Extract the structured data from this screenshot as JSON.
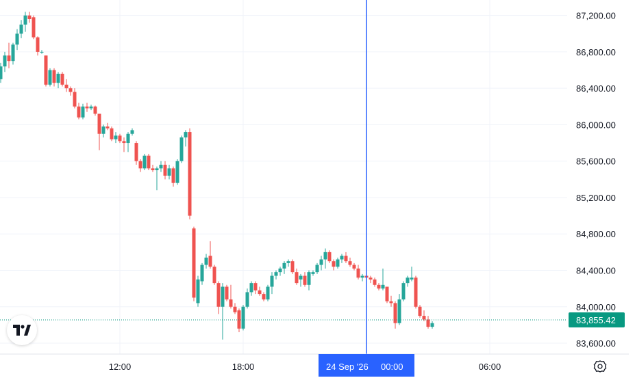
{
  "chart_data": {
    "type": "candlestick",
    "y_axis_ticks": [
      "87,200.00",
      "86,800.00",
      "86,400.00",
      "86,000.00",
      "85,600.00",
      "85,200.00",
      "84,800.00",
      "84,400.00",
      "84,000.00",
      "83,600.00"
    ],
    "x_axis_ticks": [
      "12:00",
      "18:00",
      "06:00"
    ],
    "ylim": [
      83480,
      87370
    ],
    "last_price": 83855.42,
    "last_price_label": "83,855.42",
    "crosshair_label": {
      "date": "24 Sep '26",
      "time": "00:00"
    },
    "colors": {
      "up": "#26a69a",
      "down": "#ef5350",
      "crosshair": "#2962ff",
      "price_line": "#089981",
      "grid": "#f0f3fa",
      "axis_text": "#131722"
    },
    "candles": [
      [
        86500,
        86680,
        86460,
        86640
      ],
      [
        86640,
        86800,
        86580,
        86760
      ],
      [
        86760,
        86900,
        86620,
        86700
      ],
      [
        86700,
        86900,
        86660,
        86880
      ],
      [
        86880,
        87050,
        86820,
        87000
      ],
      [
        87000,
        87150,
        86950,
        87100
      ],
      [
        87100,
        87240,
        87020,
        87200
      ],
      [
        87200,
        87240,
        87120,
        87160
      ],
      [
        87180,
        87200,
        86940,
        86960
      ],
      [
        86960,
        86970,
        86760,
        86800
      ],
      [
        86800,
        86820,
        86780,
        86800
      ],
      [
        86760,
        86760,
        86420,
        86440
      ],
      [
        86440,
        86620,
        86420,
        86600
      ],
      [
        86600,
        86620,
        86420,
        86460
      ],
      [
        86460,
        86580,
        86400,
        86560
      ],
      [
        86560,
        86580,
        86420,
        86440
      ],
      [
        86440,
        86500,
        86360,
        86400
      ],
      [
        86400,
        86420,
        86320,
        86360
      ],
      [
        86360,
        86400,
        86180,
        86200
      ],
      [
        86200,
        86240,
        86060,
        86080
      ],
      [
        86080,
        86230,
        86060,
        86200
      ],
      [
        86200,
        86240,
        86140,
        86180
      ],
      [
        86180,
        86220,
        86160,
        86200
      ],
      [
        86200,
        86210,
        86100,
        86120
      ],
      [
        86120,
        86120,
        85720,
        85900
      ],
      [
        85900,
        86000,
        85860,
        85980
      ],
      [
        85980,
        86020,
        85940,
        85960
      ],
      [
        85960,
        85980,
        85820,
        85840
      ],
      [
        85840,
        85920,
        85800,
        85880
      ],
      [
        85880,
        85900,
        85800,
        85820
      ],
      [
        85820,
        85860,
        85700,
        85800
      ],
      [
        85800,
        85920,
        85700,
        85900
      ],
      [
        85900,
        85960,
        85880,
        85940
      ],
      [
        85800,
        85820,
        85560,
        85600
      ],
      [
        85600,
        85620,
        85480,
        85520
      ],
      [
        85520,
        85680,
        85500,
        85660
      ],
      [
        85660,
        85680,
        85500,
        85520
      ],
      [
        85520,
        85560,
        85480,
        85500
      ],
      [
        85500,
        85540,
        85280,
        85520
      ],
      [
        85520,
        85600,
        85480,
        85560
      ],
      [
        85560,
        85600,
        85400,
        85440
      ],
      [
        85440,
        85560,
        85400,
        85520
      ],
      [
        85520,
        85540,
        85320,
        85360
      ],
      [
        85360,
        85620,
        85340,
        85600
      ],
      [
        85600,
        85880,
        85580,
        85860
      ],
      [
        85860,
        85940,
        85760,
        85920
      ],
      [
        85920,
        85960,
        84960,
        85000
      ],
      [
        84860,
        84880,
        84060,
        84100
      ],
      [
        84040,
        84340,
        84000,
        84300
      ],
      [
        84280,
        84480,
        84240,
        84460
      ],
      [
        84460,
        84580,
        84420,
        84540
      ],
      [
        84560,
        84720,
        84420,
        84440
      ],
      [
        84440,
        84460,
        84240,
        84260
      ],
      [
        84260,
        84280,
        83920,
        84000
      ],
      [
        84000,
        84260,
        83640,
        84220
      ],
      [
        84220,
        84240,
        84060,
        84080
      ],
      [
        84080,
        84240,
        83980,
        84000
      ],
      [
        84000,
        84040,
        83920,
        83940
      ],
      [
        83960,
        83980,
        83720,
        83760
      ],
      [
        83760,
        84020,
        83740,
        84000
      ],
      [
        84000,
        84200,
        83980,
        84160
      ],
      [
        84160,
        84280,
        84120,
        84260
      ],
      [
        84260,
        84280,
        84140,
        84180
      ],
      [
        84180,
        84220,
        84120,
        84140
      ],
      [
        84140,
        84160,
        84060,
        84080
      ],
      [
        84080,
        84240,
        84060,
        84220
      ],
      [
        84220,
        84380,
        84140,
        84340
      ],
      [
        84340,
        84400,
        84300,
        84380
      ],
      [
        84380,
        84440,
        84340,
        84420
      ],
      [
        84420,
        84500,
        84360,
        84480
      ],
      [
        84480,
        84520,
        84440,
        84500
      ],
      [
        84500,
        84520,
        84360,
        84380
      ],
      [
        84380,
        84420,
        84240,
        84260
      ],
      [
        84300,
        84360,
        84220,
        84340
      ],
      [
        84340,
        84380,
        84220,
        84240
      ],
      [
        84240,
        84400,
        84180,
        84380
      ],
      [
        84360,
        84400,
        84340,
        84380
      ],
      [
        84380,
        84480,
        84360,
        84460
      ],
      [
        84460,
        84560,
        84400,
        84520
      ],
      [
        84520,
        84640,
        84420,
        84600
      ],
      [
        84600,
        84620,
        84480,
        84500
      ],
      [
        84500,
        84520,
        84400,
        84440
      ],
      [
        84440,
        84540,
        84420,
        84520
      ],
      [
        84520,
        84580,
        84480,
        84560
      ],
      [
        84560,
        84600,
        84480,
        84500
      ],
      [
        84500,
        84540,
        84440,
        84460
      ],
      [
        84460,
        84480,
        84400,
        84420
      ],
      [
        84420,
        84460,
        84300,
        84320
      ],
      [
        84320,
        84360,
        84280,
        84340
      ],
      [
        84340,
        84360,
        84300,
        84320
      ],
      [
        84320,
        84340,
        84260,
        84300
      ],
      [
        84300,
        84320,
        84220,
        84240
      ],
      [
        84240,
        84260,
        84180,
        84200
      ],
      [
        84200,
        84420,
        84180,
        84240
      ],
      [
        84220,
        84220,
        84040,
        84060
      ],
      [
        84060,
        84120,
        84000,
        84040
      ],
      [
        84040,
        84060,
        83760,
        83820
      ],
      [
        83820,
        84140,
        83800,
        84080
      ],
      [
        84080,
        84280,
        84060,
        84260
      ],
      [
        84260,
        84340,
        84220,
        84320
      ],
      [
        84300,
        84440,
        84280,
        84320
      ],
      [
        84320,
        84340,
        83980,
        84000
      ],
      [
        84000,
        84020,
        83880,
        83900
      ],
      [
        83900,
        83960,
        83840,
        83860
      ],
      [
        83860,
        83900,
        83760,
        83780
      ],
      [
        83780,
        83840,
        83760,
        83820
      ]
    ]
  },
  "ui": {
    "logo_label": "TV",
    "settings_icon": "gear-icon"
  }
}
